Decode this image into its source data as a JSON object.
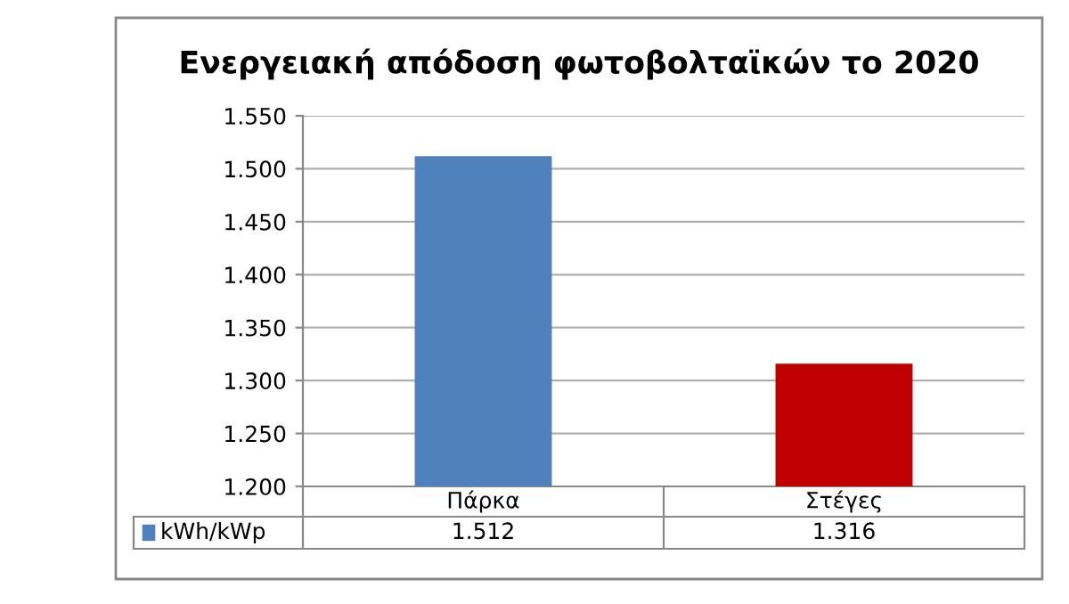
{
  "chart_data": {
    "type": "bar",
    "title": "Ενεργειακή απόδοση φωτοβολταϊκών το 2020",
    "categories": [
      "Πάρκα",
      "Στέγες"
    ],
    "series": [
      {
        "name": "kWh/kWp",
        "color": "#4f81bd",
        "colors": [
          "#4f81bd",
          "#c00000"
        ],
        "values": [
          1512,
          1316
        ],
        "value_labels": [
          "1.512",
          "1.316"
        ]
      }
    ],
    "ylim": [
      1200,
      1550
    ],
    "yticks": [
      {
        "value": 1200,
        "label": "1.200"
      },
      {
        "value": 1250,
        "label": "1.250"
      },
      {
        "value": 1300,
        "label": "1.300"
      },
      {
        "value": 1350,
        "label": "1.350"
      },
      {
        "value": 1400,
        "label": "1.400"
      },
      {
        "value": 1450,
        "label": "1.450"
      },
      {
        "value": 1500,
        "label": "1.500"
      },
      {
        "value": 1550,
        "label": "1.550"
      }
    ],
    "grid": "y",
    "legend": "bottom"
  }
}
